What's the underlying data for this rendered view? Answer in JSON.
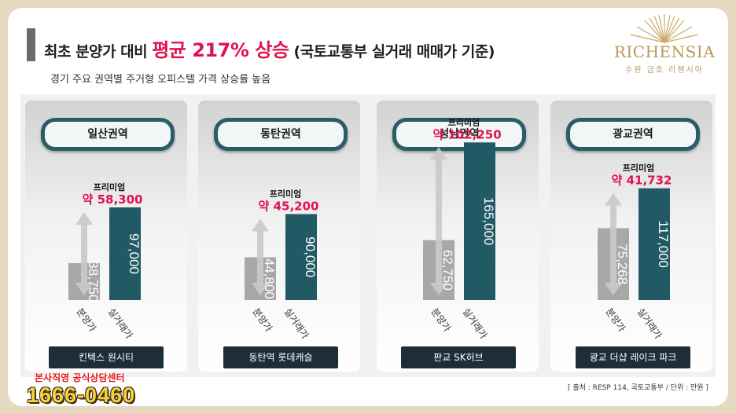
{
  "header": {
    "title_prefix": "최초 분양가 대비",
    "title_highlight": "평균 217% 상승",
    "title_suffix": "(국토교통부 실거래 매매가 기준)",
    "subtitle": "경기 주요 권역별 주거형 오피스텔 가격 상승률 높음"
  },
  "logo": {
    "name": "RICHENSIA",
    "sub": "수원 금호 리첸시아"
  },
  "colors": {
    "accent": "#e0134f",
    "actual_bar": "#215a65",
    "presale_bar": "#a8a8a8",
    "pill_border": "#275e67",
    "project_bg": "#1e2e38"
  },
  "chart_data": {
    "type": "bar",
    "categories": [
      "분양가",
      "실거래가"
    ],
    "premium_label": "프리미엄",
    "panels": [
      {
        "region": "일산권역",
        "project": "킨텍스 원시티",
        "presale_label": "38,750",
        "presale": 38750,
        "actual_label": "97,000",
        "actual": 97000,
        "premium": "약 58,300"
      },
      {
        "region": "동탄권역",
        "project": "동탄역 롯데캐슬",
        "presale_label": "44,800",
        "presale": 44800,
        "actual_label": "90,000",
        "actual": 90000,
        "premium": "약 45,200"
      },
      {
        "region": "성남권역",
        "project": "판교 SK허브",
        "presale_label": "62,750",
        "presale": 62750,
        "actual_label": "165,000",
        "actual": 165000,
        "premium": "약 102,250"
      },
      {
        "region": "광교권역",
        "project": "광교 더샵 레이크 파크",
        "presale_label": "75,268",
        "presale": 75268,
        "actual_label": "117,000",
        "actual": 117000,
        "premium": "약 41,732"
      }
    ]
  },
  "footer": {
    "source": "[ 출처 : RESP 114, 국토교통부 / 단위 : 만원 ]",
    "center_label": "본사직영 공식상담센터",
    "phone": "1666-0460"
  }
}
